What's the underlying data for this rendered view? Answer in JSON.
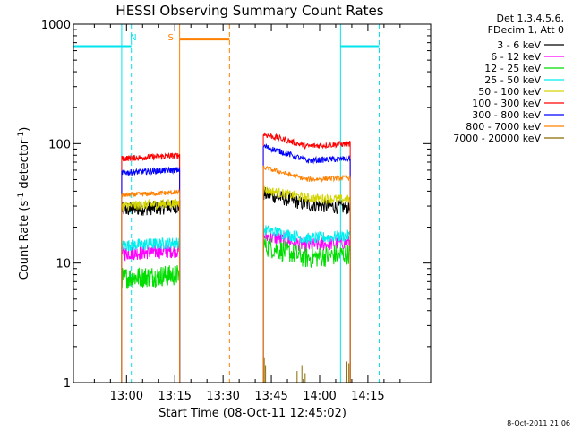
{
  "chart_data": {
    "type": "line",
    "title": "HESSI Observing Summary Count Rates",
    "xlabel": "Start Time (08-Oct-11 12:45:02)",
    "ylabel_main": "Count Rate (s",
    "ylabel_sup1": "-1",
    "ylabel_mid": " detector",
    "ylabel_sup2": "-1",
    "ylabel_end": ")",
    "y_scale": "log",
    "ylim": [
      1,
      1000
    ],
    "xlim_minutes": [
      -16.5,
      94.5
    ],
    "x_ticks": [
      {
        "minutes": 0,
        "label": "13:00"
      },
      {
        "minutes": 15,
        "label": "13:15"
      },
      {
        "minutes": 30,
        "label": "13:30"
      },
      {
        "minutes": 45,
        "label": "13:45"
      },
      {
        "minutes": 60,
        "label": "14:00"
      },
      {
        "minutes": 75,
        "label": "14:15"
      }
    ],
    "y_ticks": [
      {
        "value": 1,
        "label": "1"
      },
      {
        "value": 10,
        "label": "10"
      },
      {
        "value": 100,
        "label": "100"
      },
      {
        "value": 1000,
        "label": "1000"
      }
    ],
    "legend_header": [
      "Det 1,3,4,5,6,",
      "FDecim 1, Att 0"
    ],
    "legend_placement": "top-right, outside",
    "series": [
      {
        "name": "3 - 6 keV",
        "color": "#000000",
        "seg1": 28,
        "seg2_start": 38,
        "seg2_mid": 31,
        "seg2_end": 29,
        "noise": 0.06
      },
      {
        "name": "6 - 12 keV",
        "color": "#ff00ff",
        "seg1": 12,
        "seg2_start": 17,
        "seg2_mid": 14,
        "seg2_end": 15,
        "noise": 0.06
      },
      {
        "name": "12 - 25 keV",
        "color": "#00dd00",
        "seg1": 7.5,
        "seg2_start": 14,
        "seg2_mid": 11,
        "seg2_end": 12,
        "noise": 0.09
      },
      {
        "name": "25 - 50 keV",
        "color": "#00eeee",
        "seg1": 14,
        "seg2_start": 19,
        "seg2_mid": 16,
        "seg2_end": 17,
        "noise": 0.05
      },
      {
        "name": "50 - 100 keV",
        "color": "#d4d400",
        "seg1": 30,
        "seg2_start": 41,
        "seg2_mid": 35,
        "seg2_end": 34,
        "noise": 0.04
      },
      {
        "name": "100 - 300 keV",
        "color": "#ff0000",
        "seg1": 75,
        "seg2_start": 120,
        "seg2_mid": 95,
        "seg2_end": 100,
        "noise": 0.025
      },
      {
        "name": "300 - 800 keV",
        "color": "#0000ff",
        "seg1": 57,
        "seg2_start": 95,
        "seg2_mid": 72,
        "seg2_end": 75,
        "noise": 0.025
      },
      {
        "name": "800 - 7000 keV",
        "color": "#ff8000",
        "seg1": 37,
        "seg2_start": 63,
        "seg2_mid": 50,
        "seg2_end": 52,
        "noise": 0.02
      },
      {
        "name": "7000 - 20000 keV",
        "color": "#8b6b00",
        "seg1": null,
        "seg2_start": null,
        "seg2_mid": null,
        "seg2_end": null,
        "noise": 0
      }
    ],
    "data_segments_minutes": [
      [
        -1.5,
        16.5
      ],
      [
        42.5,
        69.5
      ]
    ],
    "saa_markers": [
      {
        "label": "N",
        "color": "#00e5ee",
        "solid_at": [
          -1.5,
          66.5
        ],
        "dashed_at": [
          1.5,
          78.5
        ],
        "level_segments": [
          [
            -16.5,
            1.5
          ],
          [
            66.5,
            78.5
          ]
        ],
        "level_value": 650
      },
      {
        "label": "S",
        "color": "#ff8000",
        "solid_at": [
          16.5
        ],
        "dashed_at": [
          32
        ],
        "level_segments": [
          [
            16.5,
            32
          ]
        ],
        "level_value": 750
      }
    ],
    "timestamp": "8-Oct-2011 21:06"
  }
}
